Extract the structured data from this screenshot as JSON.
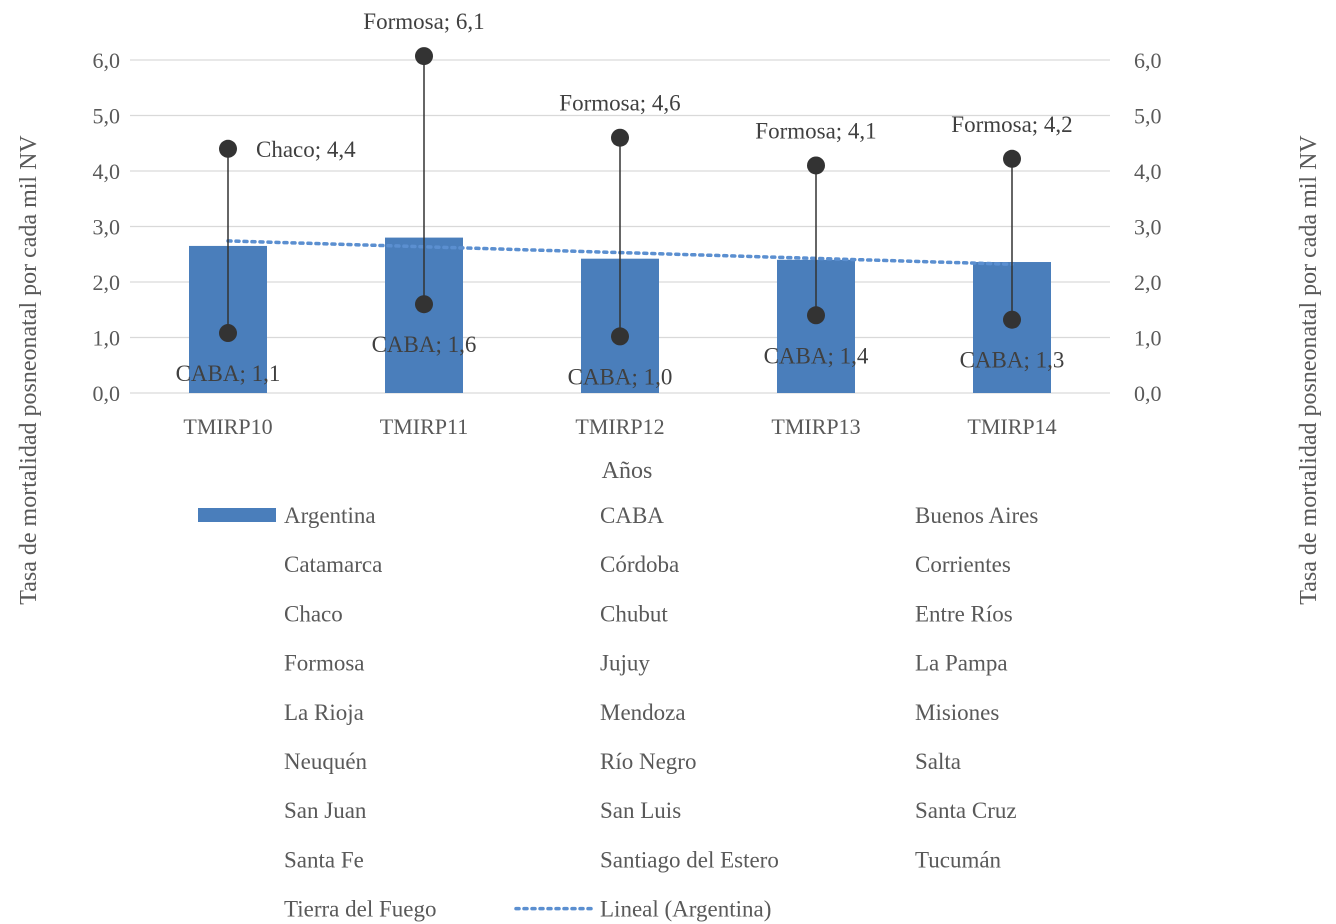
{
  "chart_data": {
    "type": "bar",
    "categories": [
      "TMIRP10",
      "TMIRP11",
      "TMIRP12",
      "TMIRP13",
      "TMIRP14"
    ],
    "xlabel": "Años",
    "ylabel": "Tasa de mortalidad posneonatal por cada mil NV",
    "y2label": "Tasa de mortalidad posneonatal por cada mil NV",
    "ylim": [
      0,
      6.0
    ],
    "yticks": [
      "0,0",
      "1,0",
      "2,0",
      "3,0",
      "4,0",
      "5,0",
      "6,0"
    ],
    "grid": true,
    "legend_position": "bottom",
    "colors": {
      "bar": "#4a7ebb",
      "marker": "#333333",
      "trend": "#5b8fd0"
    },
    "bar_series": {
      "name": "Argentina",
      "values": [
        2.65,
        2.8,
        2.42,
        2.4,
        2.36
      ]
    },
    "max_points": [
      {
        "label": "Chaco; 4,4",
        "value": 4.4
      },
      {
        "label": "Formosa; 6,1",
        "value": 6.07
      },
      {
        "label": "Formosa; 4,6",
        "value": 4.6
      },
      {
        "label": "Formosa; 4,1",
        "value": 4.1
      },
      {
        "label": "Formosa; 4,2",
        "value": 4.22
      }
    ],
    "min_points": [
      {
        "label": "CABA; 1,1",
        "value": 1.08
      },
      {
        "label": "CABA; 1,6",
        "value": 1.6
      },
      {
        "label": "CABA; 1,0",
        "value": 1.02
      },
      {
        "label": "CABA; 1,4",
        "value": 1.4
      },
      {
        "label": "CABA; 1,3",
        "value": 1.32
      }
    ],
    "trend": {
      "name": "Lineal (Argentina)",
      "start": 2.74,
      "end": 2.32
    },
    "legend_entries": [
      "Argentina",
      "CABA",
      "Buenos Aires",
      "Catamarca",
      "Córdoba",
      "Corrientes",
      "Chaco",
      "Chubut",
      "Entre Ríos",
      "Formosa",
      "Jujuy",
      "La Pampa",
      "La Rioja",
      "Mendoza",
      "Misiones",
      "Neuquén",
      "Río Negro",
      "Salta",
      "San Juan",
      "San Luis",
      "Santa Cruz",
      "Santa Fe",
      "Santiago del Estero",
      "Tucumán",
      "Tierra del Fuego",
      "Lineal (Argentina)"
    ]
  }
}
